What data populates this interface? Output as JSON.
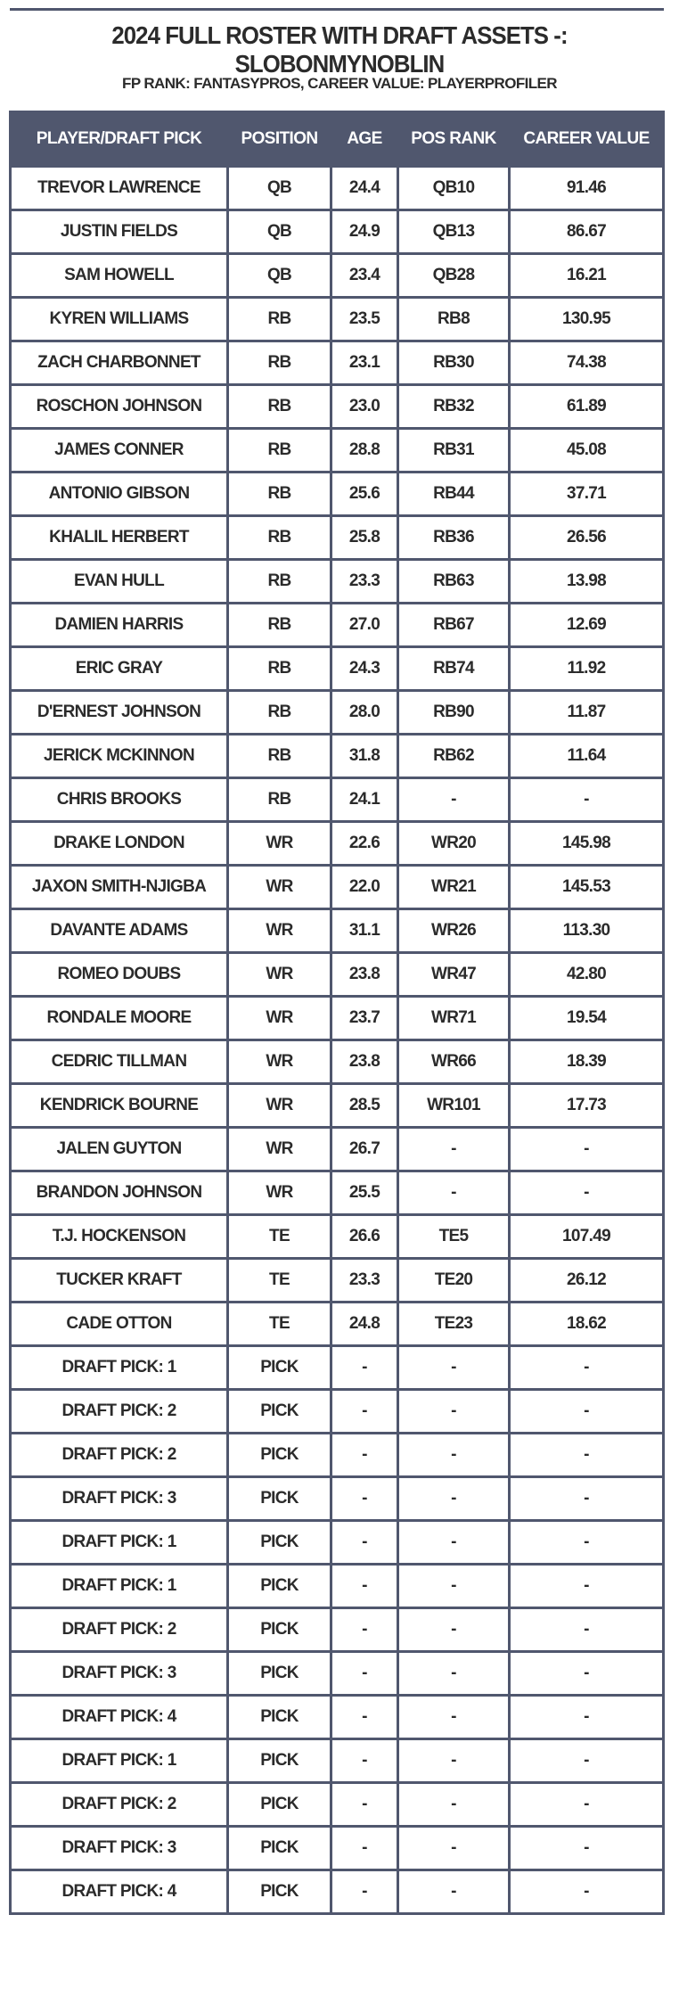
{
  "header": {
    "title": "2024 FULL ROSTER WITH DRAFT ASSETS -: SLOBONMYNOBLIN",
    "subtitle": "FP RANK: FANTASYPROS, CAREER VALUE: PLAYERPROFILER"
  },
  "table": {
    "columns": [
      "PLAYER/DRAFT PICK",
      "POSITION",
      "AGE",
      "POS RANK",
      "CAREER VALUE"
    ],
    "rows": [
      [
        "TREVOR LAWRENCE",
        "QB",
        "24.4",
        "QB10",
        "91.46"
      ],
      [
        "JUSTIN FIELDS",
        "QB",
        "24.9",
        "QB13",
        "86.67"
      ],
      [
        "SAM HOWELL",
        "QB",
        "23.4",
        "QB28",
        "16.21"
      ],
      [
        "KYREN WILLIAMS",
        "RB",
        "23.5",
        "RB8",
        "130.95"
      ],
      [
        "ZACH CHARBONNET",
        "RB",
        "23.1",
        "RB30",
        "74.38"
      ],
      [
        "ROSCHON JOHNSON",
        "RB",
        "23.0",
        "RB32",
        "61.89"
      ],
      [
        "JAMES CONNER",
        "RB",
        "28.8",
        "RB31",
        "45.08"
      ],
      [
        "ANTONIO GIBSON",
        "RB",
        "25.6",
        "RB44",
        "37.71"
      ],
      [
        "KHALIL HERBERT",
        "RB",
        "25.8",
        "RB36",
        "26.56"
      ],
      [
        "EVAN HULL",
        "RB",
        "23.3",
        "RB63",
        "13.98"
      ],
      [
        "DAMIEN HARRIS",
        "RB",
        "27.0",
        "RB67",
        "12.69"
      ],
      [
        "ERIC GRAY",
        "RB",
        "24.3",
        "RB74",
        "11.92"
      ],
      [
        "D'ERNEST JOHNSON",
        "RB",
        "28.0",
        "RB90",
        "11.87"
      ],
      [
        "JERICK MCKINNON",
        "RB",
        "31.8",
        "RB62",
        "11.64"
      ],
      [
        "CHRIS BROOKS",
        "RB",
        "24.1",
        "-",
        "-"
      ],
      [
        "DRAKE LONDON",
        "WR",
        "22.6",
        "WR20",
        "145.98"
      ],
      [
        "JAXON SMITH-NJIGBA",
        "WR",
        "22.0",
        "WR21",
        "145.53"
      ],
      [
        "DAVANTE ADAMS",
        "WR",
        "31.1",
        "WR26",
        "113.30"
      ],
      [
        "ROMEO DOUBS",
        "WR",
        "23.8",
        "WR47",
        "42.80"
      ],
      [
        "RONDALE MOORE",
        "WR",
        "23.7",
        "WR71",
        "19.54"
      ],
      [
        "CEDRIC TILLMAN",
        "WR",
        "23.8",
        "WR66",
        "18.39"
      ],
      [
        "KENDRICK BOURNE",
        "WR",
        "28.5",
        "WR101",
        "17.73"
      ],
      [
        "JALEN GUYTON",
        "WR",
        "26.7",
        "-",
        "-"
      ],
      [
        "BRANDON JOHNSON",
        "WR",
        "25.5",
        "-",
        "-"
      ],
      [
        "T.J. HOCKENSON",
        "TE",
        "26.6",
        "TE5",
        "107.49"
      ],
      [
        "TUCKER KRAFT",
        "TE",
        "23.3",
        "TE20",
        "26.12"
      ],
      [
        "CADE OTTON",
        "TE",
        "24.8",
        "TE23",
        "18.62"
      ],
      [
        "DRAFT PICK: 1",
        "PICK",
        "-",
        "-",
        "-"
      ],
      [
        "DRAFT PICK: 2",
        "PICK",
        "-",
        "-",
        "-"
      ],
      [
        "DRAFT PICK: 2",
        "PICK",
        "-",
        "-",
        "-"
      ],
      [
        "DRAFT PICK: 3",
        "PICK",
        "-",
        "-",
        "-"
      ],
      [
        "DRAFT PICK: 1",
        "PICK",
        "-",
        "-",
        "-"
      ],
      [
        "DRAFT PICK: 1",
        "PICK",
        "-",
        "-",
        "-"
      ],
      [
        "DRAFT PICK: 2",
        "PICK",
        "-",
        "-",
        "-"
      ],
      [
        "DRAFT PICK: 3",
        "PICK",
        "-",
        "-",
        "-"
      ],
      [
        "DRAFT PICK: 4",
        "PICK",
        "-",
        "-",
        "-"
      ],
      [
        "DRAFT PICK: 1",
        "PICK",
        "-",
        "-",
        "-"
      ],
      [
        "DRAFT PICK: 2",
        "PICK",
        "-",
        "-",
        "-"
      ],
      [
        "DRAFT PICK: 3",
        "PICK",
        "-",
        "-",
        "-"
      ],
      [
        "DRAFT PICK: 4",
        "PICK",
        "-",
        "-",
        "-"
      ]
    ]
  }
}
